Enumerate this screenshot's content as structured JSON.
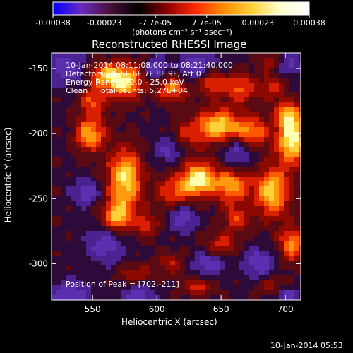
{
  "colorbar": {
    "tick_labels": [
      "-0.00038",
      "-0.00023",
      "-7.7e-05",
      "7.7e-05",
      "0.00023",
      "0.00038"
    ],
    "unit_label": "(photons cm⁻² s⁻¹ asec⁻²)",
    "colors": [
      "#0000ff",
      "#6a2bbf",
      "#4b0f3a",
      "#000000",
      "#8b0000",
      "#ff2a00",
      "#ff8c00",
      "#ffd23a",
      "#ffffd0",
      "#ffffff"
    ]
  },
  "chart_data": {
    "type": "heatmap",
    "title": "Reconstructed RHESSI Image",
    "xlabel": "Heliocentric X (arcsec)",
    "ylabel": "Heliocentric Y (arcsec)",
    "xlim": [
      518,
      712
    ],
    "ylim": [
      -328,
      -138
    ],
    "xticks": [
      550,
      600,
      650,
      700
    ],
    "yticks": [
      -150,
      -200,
      -250,
      -300
    ],
    "zlim": [
      -0.00038,
      0.00038
    ],
    "peak": [
      702,
      -211
    ]
  },
  "annotations": {
    "time_range": "10-Jan-2014 08:11:08.000 to 08:21:40.000",
    "detectors": "Detectors: 3F 5F 6F 7F 8F 9F, Att 0",
    "energy": "Energy Range: 12.0 - 25.0 keV",
    "method": "Clean    Total counts: 5.27E+04",
    "peak_label": "Position of Peak = [702,-211]"
  },
  "footer": {
    "timestamp": "10-Jan-2014 05:53"
  }
}
